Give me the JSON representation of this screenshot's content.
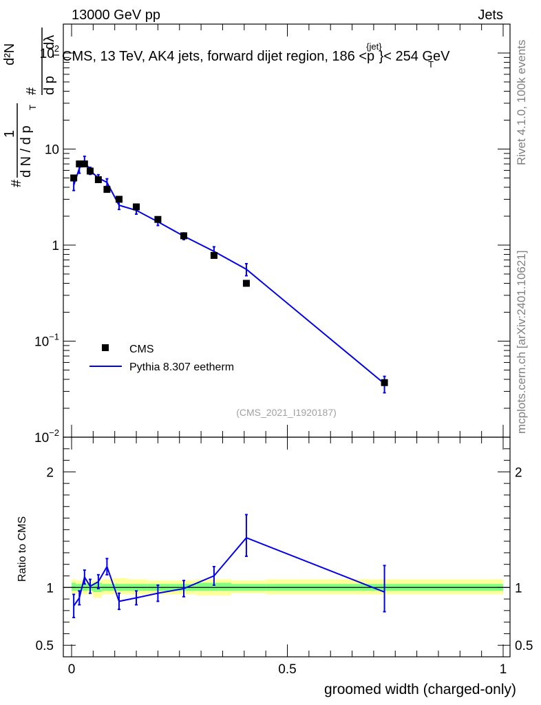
{
  "header": {
    "left": "13000 GeV pp",
    "right": "Jets"
  },
  "side": {
    "rivet": "Rivet 4.1.0,  100k events",
    "source": "mcplots.cern.ch [arXiv:2401.10621]"
  },
  "chart_data": [
    {
      "type": "scatter",
      "title": "CMS, 13 TeV, AK4 jets, forward dijet region, 186 <p",
      "title_sup": "{jet}",
      "title_sub": "T",
      "title_tail": "}< 254 GeV",
      "ylabel_parts": {
        "hash1": "#",
        "one": "1",
        "dN": "d N / d p",
        "sub1": "T",
        "hash2": "#",
        "d2N": "d²N",
        "dpt": "d p",
        "sub2": "T",
        "dl": "dλ"
      },
      "yscale": "log",
      "ylim": [
        0.01,
        200
      ],
      "xlim": [
        0,
        1
      ],
      "ytick_labels": [
        {
          "v": 0.01,
          "base": "10",
          "exp": "−2"
        },
        {
          "v": 0.1,
          "base": "10",
          "exp": "−1"
        },
        {
          "v": 1,
          "base": "1",
          "exp": ""
        },
        {
          "v": 10,
          "base": "10",
          "exp": ""
        },
        {
          "v": 100,
          "base": "10",
          "exp": "2"
        }
      ],
      "watermark": "(CMS_2021_I1920187)",
      "legend": {
        "position": "bottom-left",
        "data_label": "CMS",
        "mc_label": "Pythia 8.307 eetherm"
      },
      "series": [
        {
          "name": "CMS",
          "color": "#000000",
          "x": [
            0.005,
            0.018,
            0.03,
            0.043,
            0.062,
            0.082,
            0.11,
            0.15,
            0.2,
            0.26,
            0.33,
            0.405,
            0.725
          ],
          "y": [
            5.0,
            7.0,
            7.0,
            5.9,
            4.8,
            3.8,
            3.0,
            2.5,
            1.85,
            1.25,
            0.78,
            0.4,
            0.037
          ]
        },
        {
          "name": "Pythia 8.307 eetherm",
          "color": "#0000ee",
          "x": [
            0.005,
            0.018,
            0.03,
            0.043,
            0.062,
            0.082,
            0.11,
            0.15,
            0.2,
            0.26,
            0.33,
            0.405,
            0.725
          ],
          "y": [
            4.2,
            6.3,
            7.6,
            5.95,
            5.0,
            4.5,
            2.6,
            2.3,
            1.75,
            1.24,
            0.86,
            0.56,
            0.036
          ],
          "err": [
            0.5,
            0.7,
            0.8,
            0.5,
            0.4,
            0.4,
            0.25,
            0.2,
            0.15,
            0.1,
            0.1,
            0.08,
            0.007
          ]
        }
      ]
    },
    {
      "type": "line",
      "ylabel": "Ratio to CMS",
      "xlabel": "groomed width (charged-only)",
      "ylim": [
        0.4,
        2.3
      ],
      "xlim": [
        0,
        1
      ],
      "ytick_labels": [
        "0.5",
        "1",
        "2"
      ],
      "ytick_values": [
        0.5,
        1,
        2
      ],
      "xtick_labels": [
        "0",
        "0.5",
        "1"
      ],
      "xtick_values": [
        0,
        0.5,
        1
      ],
      "series": [
        {
          "name": "Pythia 8.307 eetherm / CMS",
          "color": "#0000ee",
          "x": [
            0.005,
            0.018,
            0.03,
            0.043,
            0.062,
            0.082,
            0.11,
            0.15,
            0.2,
            0.26,
            0.33,
            0.405,
            0.725
          ],
          "y": [
            0.84,
            0.91,
            1.09,
            1.01,
            1.05,
            1.18,
            0.88,
            0.91,
            0.95,
            0.99,
            1.1,
            1.43,
            0.96
          ],
          "err_lo": [
            0.1,
            0.06,
            0.06,
            0.06,
            0.06,
            0.07,
            0.07,
            0.06,
            0.07,
            0.07,
            0.08,
            0.16,
            0.17
          ],
          "err_hi": [
            0.1,
            0.06,
            0.06,
            0.06,
            0.06,
            0.07,
            0.07,
            0.06,
            0.07,
            0.07,
            0.08,
            0.2,
            0.23
          ]
        }
      ],
      "bands": [
        {
          "x0": 0.0,
          "x1": 0.01,
          "in_lo": 0.97,
          "in_hi": 1.04,
          "out_lo": 0.94,
          "out_hi": 1.07
        },
        {
          "x0": 0.01,
          "x1": 0.025,
          "in_lo": 0.97,
          "in_hi": 1.03,
          "out_lo": 0.95,
          "out_hi": 1.06
        },
        {
          "x0": 0.025,
          "x1": 0.037,
          "in_lo": 0.97,
          "in_hi": 1.03,
          "out_lo": 0.94,
          "out_hi": 1.07
        },
        {
          "x0": 0.037,
          "x1": 0.05,
          "in_lo": 0.97,
          "in_hi": 1.03,
          "out_lo": 0.94,
          "out_hi": 1.06
        },
        {
          "x0": 0.05,
          "x1": 0.07,
          "in_lo": 0.96,
          "in_hi": 1.04,
          "out_lo": 0.91,
          "out_hi": 1.06
        },
        {
          "x0": 0.07,
          "x1": 0.095,
          "in_lo": 0.97,
          "in_hi": 1.03,
          "out_lo": 0.94,
          "out_hi": 1.07
        },
        {
          "x0": 0.095,
          "x1": 0.13,
          "in_lo": 0.97,
          "in_hi": 1.03,
          "out_lo": 0.94,
          "out_hi": 1.08
        },
        {
          "x0": 0.13,
          "x1": 0.175,
          "in_lo": 0.97,
          "in_hi": 1.03,
          "out_lo": 0.94,
          "out_hi": 1.07
        },
        {
          "x0": 0.175,
          "x1": 0.23,
          "in_lo": 0.97,
          "in_hi": 1.03,
          "out_lo": 0.94,
          "out_hi": 1.06
        },
        {
          "x0": 0.23,
          "x1": 0.29,
          "in_lo": 0.97,
          "in_hi": 1.03,
          "out_lo": 0.94,
          "out_hi": 1.06
        },
        {
          "x0": 0.29,
          "x1": 0.37,
          "in_lo": 0.97,
          "in_hi": 1.04,
          "out_lo": 0.93,
          "out_hi": 1.07
        },
        {
          "x0": 0.37,
          "x1": 0.45,
          "in_lo": 0.97,
          "in_hi": 1.03,
          "out_lo": 0.95,
          "out_hi": 1.06
        },
        {
          "x0": 0.45,
          "x1": 1.0,
          "in_lo": 0.97,
          "in_hi": 1.03,
          "out_lo": 0.94,
          "out_hi": 1.07
        }
      ]
    }
  ]
}
